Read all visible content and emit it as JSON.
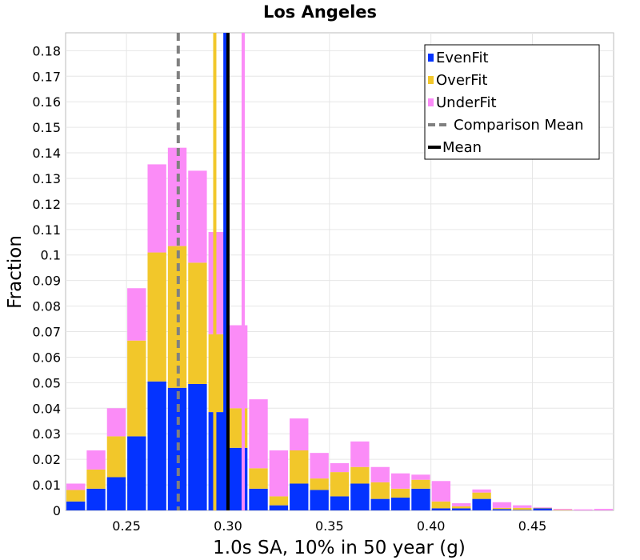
{
  "chart_data": {
    "type": "bar",
    "stacked": true,
    "title": "Los Angeles",
    "xlabel": "1.0s SA, 10% in 50 year (g)",
    "ylabel": "Fraction",
    "xlim": [
      0.22,
      0.49
    ],
    "ylim": [
      0,
      0.187
    ],
    "x_ticks": [
      "0.25",
      "0.30",
      "0.35",
      "0.40",
      "0.45"
    ],
    "y_ticks": [
      "0",
      "0.01",
      "0.02",
      "0.03",
      "0.04",
      "0.05",
      "0.06",
      "0.07",
      "0.08",
      "0.09",
      "0.1",
      "0.11",
      "0.12",
      "0.13",
      "0.14",
      "0.15",
      "0.16",
      "0.17",
      "0.18"
    ],
    "grid": true,
    "legend_position": "top-right",
    "bin_width": 0.01,
    "bin_centers": [
      0.225,
      0.235,
      0.245,
      0.255,
      0.265,
      0.275,
      0.285,
      0.295,
      0.305,
      0.315,
      0.325,
      0.335,
      0.345,
      0.355,
      0.365,
      0.375,
      0.385,
      0.395,
      0.405,
      0.415,
      0.425,
      0.435,
      0.445,
      0.455,
      0.465,
      0.475,
      0.485
    ],
    "series": [
      {
        "name": "EvenFit",
        "color": "#0433ff",
        "values": [
          0.0035,
          0.0085,
          0.013,
          0.029,
          0.0505,
          0.048,
          0.0495,
          0.0385,
          0.0245,
          0.0085,
          0.002,
          0.0105,
          0.008,
          0.0055,
          0.0105,
          0.0045,
          0.005,
          0.0085,
          0.0008,
          0.0008,
          0.0045,
          0.0005,
          0.0002,
          0.0008,
          0.0,
          0.0,
          0.0
        ]
      },
      {
        "name": "OverFit",
        "color": "#f2c72a",
        "values": [
          0.0045,
          0.0075,
          0.016,
          0.0375,
          0.0505,
          0.0555,
          0.0475,
          0.0305,
          0.0155,
          0.008,
          0.0035,
          0.013,
          0.0045,
          0.0095,
          0.0065,
          0.0065,
          0.0035,
          0.0035,
          0.0027,
          0.0008,
          0.0025,
          0.0005,
          0.0008,
          0.0002,
          0.0002,
          0.0,
          0.0
        ]
      },
      {
        "name": "UnderFit",
        "color": "#fb8cf7",
        "values": [
          0.0025,
          0.0075,
          0.011,
          0.0205,
          0.0345,
          0.0385,
          0.036,
          0.04,
          0.0325,
          0.027,
          0.018,
          0.0125,
          0.01,
          0.0035,
          0.01,
          0.006,
          0.006,
          0.002,
          0.008,
          0.0012,
          0.0012,
          0.0022,
          0.001,
          0.0002,
          0.0004,
          0.0004,
          0.0006
        ]
      }
    ],
    "comparison_mean": {
      "label": "Comparison Mean",
      "x": 0.2755,
      "color": "#808080"
    },
    "mean": {
      "label": "Mean",
      "x": 0.3,
      "color": "#000000"
    },
    "series_mean_lines": [
      {
        "series": "OverFit",
        "x": 0.2935,
        "color": "#f2c72a"
      },
      {
        "series": "EvenFit",
        "x": 0.2985,
        "color": "#0433ff"
      },
      {
        "series": "UnderFit",
        "x": 0.3075,
        "color": "#fb8cf7"
      }
    ]
  }
}
